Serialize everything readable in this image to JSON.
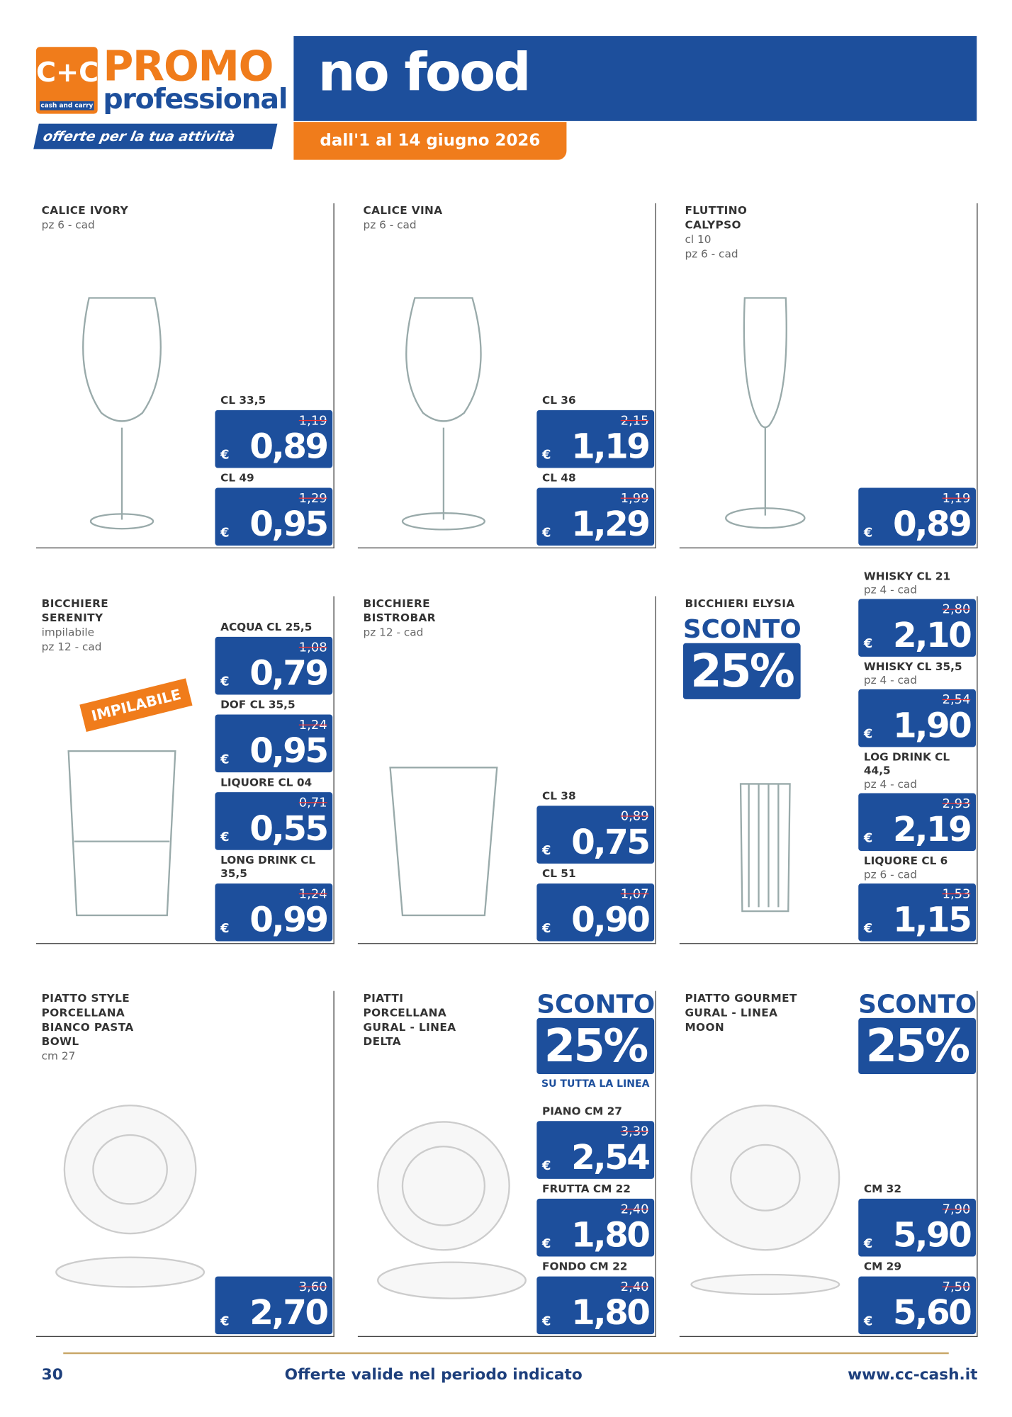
{
  "header": {
    "logo": "C+C",
    "logo_sub": "cash and carry",
    "brand": "PROMO",
    "brand_sub": "professional",
    "tagline": "offerte per la tua attività",
    "title": "no food",
    "dates": "dall'1 al 14 giugno 2026"
  },
  "currency": "€",
  "products": [
    {
      "name": [
        "CALICE IVORY"
      ],
      "details": [
        "pz 6 - cad"
      ],
      "prices": [
        {
          "label": "CL 33,5",
          "old": "1,19",
          "new": "0,89"
        },
        {
          "label": "CL 49",
          "old": "1,29",
          "new": "0,95"
        }
      ]
    },
    {
      "name": [
        "CALICE VINA"
      ],
      "details": [
        "pz 6 - cad"
      ],
      "prices": [
        {
          "label": "CL 36",
          "old": "2,15",
          "new": "1,19"
        },
        {
          "label": "CL 48",
          "old": "1,99",
          "new": "1,29"
        }
      ]
    },
    {
      "name": [
        "FLUTTINO",
        "CALYPSO"
      ],
      "details": [
        "cl 10",
        "pz 6 - cad"
      ],
      "prices": [
        {
          "old": "1,19",
          "new": "0,89"
        }
      ]
    },
    {
      "name": [
        "BICCHIERE",
        "SERENITY"
      ],
      "details": [
        "impilabile",
        "pz 12 - cad"
      ],
      "ribbon": "IMPILABILE",
      "prices": [
        {
          "label": "ACQUA CL 25,5",
          "old": "1,08",
          "new": "0,79"
        },
        {
          "label": "DOF CL 35,5",
          "old": "1,24",
          "new": "0,95"
        },
        {
          "label": "LIQUORE CL 04",
          "old": "0,71",
          "new": "0,55"
        },
        {
          "label": "LONG DRINK CL 35,5",
          "old": "1,24",
          "new": "0,99"
        }
      ]
    },
    {
      "name": [
        "BICCHIERE",
        "BISTROBAR"
      ],
      "details": [
        "pz 12 - cad"
      ],
      "prices": [
        {
          "label": "CL 38",
          "old": "0,89",
          "new": "0,75"
        },
        {
          "label": "CL 51",
          "old": "1,07",
          "new": "0,90"
        }
      ]
    },
    {
      "name": [
        "BICCHIERI ELYSIA"
      ],
      "details": [],
      "badge": {
        "title": "SCONTO",
        "value": "25%"
      },
      "prices": [
        {
          "label": "WHISKY CL 21",
          "sub": "pz 4 - cad",
          "old": "2,80",
          "new": "2,10"
        },
        {
          "label": "WHISKY CL 35,5",
          "sub": "pz 4 - cad",
          "old": "2,54",
          "new": "1,90"
        },
        {
          "label": "LOG DRINK CL 44,5",
          "sub": "pz 4 - cad",
          "old": "2,93",
          "new": "2,19"
        },
        {
          "label": "LIQUORE CL 6",
          "sub": "pz 6 - cad",
          "old": "1,53",
          "new": "1,15"
        }
      ]
    },
    {
      "name": [
        "PIATTO STYLE",
        "PORCELLANA",
        "BIANCO PASTA",
        "BOWL"
      ],
      "details": [
        "cm 27"
      ],
      "prices": [
        {
          "old": "3,60",
          "new": "2,70"
        }
      ]
    },
    {
      "name": [
        "PIATTI",
        "PORCELLANA",
        "GURAL - LINEA",
        "DELTA"
      ],
      "details": [],
      "badge": {
        "title": "SCONTO",
        "value": "25%",
        "note": "SU TUTTA LA LINEA"
      },
      "prices": [
        {
          "label": "PIANO CM 27",
          "old": "3,39",
          "new": "2,54"
        },
        {
          "label": "FRUTTA CM 22",
          "old": "2,40",
          "new": "1,80"
        },
        {
          "label": "FONDO CM 22",
          "old": "2,40",
          "new": "1,80"
        }
      ]
    },
    {
      "name": [
        "PIATTO GOURMET",
        "GURAL - LINEA",
        "MOON"
      ],
      "details": [],
      "badge": {
        "title": "SCONTO",
        "value": "25%"
      },
      "prices": [
        {
          "label": "CM 32",
          "old": "7,90",
          "new": "5,90"
        },
        {
          "label": "CM 29",
          "old": "7,50",
          "new": "5,60"
        }
      ]
    }
  ],
  "footer": {
    "page": "30",
    "note": "Offerte valide nel periodo indicato",
    "url": "www.cc-cash.it"
  }
}
